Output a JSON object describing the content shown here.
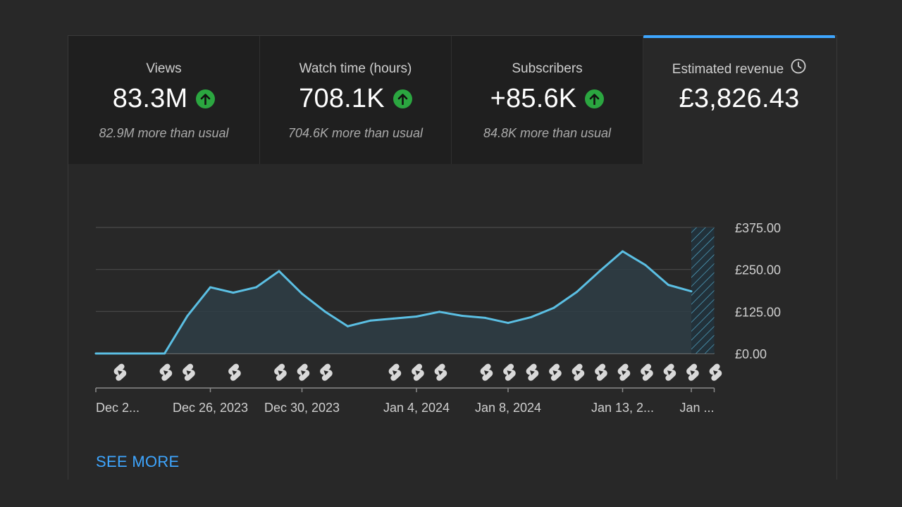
{
  "tabs": [
    {
      "title": "Views",
      "value": "83.3M",
      "sub": "82.9M more than usual",
      "trend_icon": "arrow-up-circle-icon"
    },
    {
      "title": "Watch time (hours)",
      "value": "708.1K",
      "sub": "704.6K more than usual",
      "trend_icon": "arrow-up-circle-icon"
    },
    {
      "title": "Subscribers",
      "value": "+85.6K",
      "sub": "84.8K more than usual",
      "trend_icon": "arrow-up-circle-icon"
    },
    {
      "title": "Estimated revenue",
      "value": "£3,826.43",
      "icon": "clock-icon",
      "active": true
    }
  ],
  "colors": {
    "background": "#282828",
    "accent": "#3ea6ff",
    "line": "#5bbfe3",
    "trend_up": "#2ba640"
  },
  "chart_data": {
    "type": "area",
    "ylim": [
      0,
      375
    ],
    "y_ticks": [
      "£375.00",
      "£250.00",
      "£125.00",
      "£0.00"
    ],
    "x_tick_labels": [
      "Dec 2...",
      "Dec 26, 2023",
      "Dec 30, 2023",
      "Jan 4, 2024",
      "Jan 8, 2024",
      "Jan 13, 2...",
      "Jan ..."
    ],
    "x_tick_days": [
      0,
      5,
      9,
      14,
      18,
      23,
      26
    ],
    "series": [
      {
        "values": [
          0,
          0,
          0,
          0,
          112,
          197,
          181,
          197,
          245,
          178,
          125,
          81,
          98,
          104,
          110,
          124,
          112,
          106,
          91,
          108,
          136,
          183,
          245,
          304,
          263,
          204,
          185
        ],
        "partial_last": true
      }
    ],
    "grid": true,
    "shorts_markers_days": [
      1,
      3,
      4,
      6,
      8,
      9,
      10,
      13,
      14,
      15,
      17,
      18,
      19,
      20,
      21,
      22,
      23,
      24,
      25,
      26,
      27
    ]
  },
  "see_more": "SEE MORE"
}
